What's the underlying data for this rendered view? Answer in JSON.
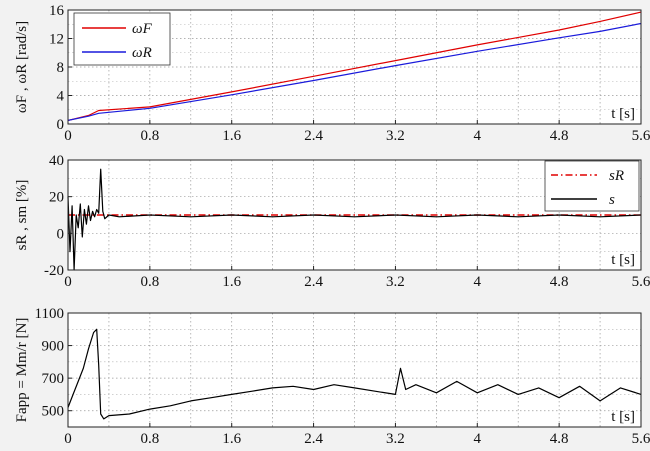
{
  "chart_data": [
    {
      "type": "line",
      "title": "",
      "xlabel": "t [s]",
      "ylabel": "ωF , ωR [rad/s]",
      "xlim": [
        0,
        5.6
      ],
      "ylim": [
        0,
        16
      ],
      "xticks": [
        "0",
        "0.8",
        "1.6",
        "2.4",
        "3.2",
        "4",
        "4.8",
        "5.6"
      ],
      "yticks": [
        "0",
        "4",
        "8",
        "12",
        "16"
      ],
      "grid": true,
      "legend_position": "top-left",
      "series": [
        {
          "name": "ωF",
          "color": "#e00000",
          "x": [
            0,
            0.2,
            0.3,
            0.8,
            1.6,
            2.4,
            3.2,
            4.0,
            4.8,
            5.2,
            5.6
          ],
          "y": [
            0.5,
            1.2,
            1.9,
            2.4,
            4.5,
            6.7,
            8.9,
            11.1,
            13.2,
            14.4,
            15.7
          ]
        },
        {
          "name": "ωR",
          "color": "#1a1adb",
          "x": [
            0,
            0.2,
            0.3,
            0.8,
            1.6,
            2.4,
            3.2,
            4.0,
            4.8,
            5.2,
            5.6
          ],
          "y": [
            0.5,
            1.1,
            1.5,
            2.2,
            4.1,
            6.1,
            8.2,
            10.2,
            12.1,
            13.0,
            14.1
          ]
        }
      ]
    },
    {
      "type": "line",
      "title": "",
      "xlabel": "t [s]",
      "ylabel": "sR , sm [%]",
      "xlim": [
        0,
        5.6
      ],
      "ylim": [
        -20,
        40
      ],
      "xticks": [
        "0",
        "0.8",
        "1.6",
        "2.4",
        "3.2",
        "4",
        "4.8",
        "5.6"
      ],
      "yticks": [
        "-20",
        "0",
        "20",
        "40"
      ],
      "grid": true,
      "legend_position": "top-right",
      "series": [
        {
          "name": "sR",
          "color": "#e00000",
          "dash": "dashdot",
          "x": [
            0,
            5.6
          ],
          "y": [
            10,
            10
          ]
        },
        {
          "name": "s",
          "color": "#000000",
          "x": [
            0,
            0.02,
            0.04,
            0.06,
            0.08,
            0.1,
            0.12,
            0.14,
            0.16,
            0.18,
            0.2,
            0.22,
            0.24,
            0.26,
            0.28,
            0.3,
            0.32,
            0.34,
            0.36,
            0.4,
            0.5,
            0.8,
            1.2,
            1.6,
            2.0,
            2.4,
            2.8,
            3.2,
            3.6,
            4.0,
            4.4,
            4.8,
            5.2,
            5.6
          ],
          "y": [
            20,
            -10,
            15,
            -20,
            10,
            3,
            16,
            -2,
            13,
            5,
            15,
            7,
            12,
            9,
            13,
            11,
            35,
            12,
            8,
            10,
            9,
            10,
            9,
            10,
            9,
            10,
            9,
            10,
            9,
            10,
            9,
            10,
            9,
            10
          ]
        }
      ]
    },
    {
      "type": "line",
      "title": "",
      "xlabel": "t [s]",
      "ylabel": "Fapp = Mm/r [N]",
      "xlim": [
        0,
        5.6
      ],
      "ylim": [
        400,
        1100
      ],
      "xticks": [
        "0",
        "0.8",
        "1.6",
        "2.4",
        "3.2",
        "4",
        "4.8",
        "5.6"
      ],
      "yticks": [
        "500",
        "700",
        "900",
        "1100"
      ],
      "grid": true,
      "series": [
        {
          "name": "",
          "color": "#000000",
          "x": [
            0,
            0.05,
            0.1,
            0.15,
            0.2,
            0.25,
            0.28,
            0.3,
            0.32,
            0.35,
            0.4,
            0.6,
            0.8,
            1.0,
            1.2,
            1.4,
            1.6,
            1.8,
            2.0,
            2.2,
            2.4,
            2.6,
            2.8,
            3.0,
            3.2,
            3.25,
            3.3,
            3.4,
            3.6,
            3.8,
            4.0,
            4.2,
            4.4,
            4.6,
            4.8,
            5.0,
            5.2,
            5.4,
            5.6
          ],
          "y": [
            520,
            600,
            680,
            760,
            880,
            980,
            1000,
            780,
            480,
            450,
            470,
            480,
            510,
            530,
            560,
            580,
            600,
            620,
            640,
            650,
            630,
            660,
            640,
            620,
            600,
            760,
            630,
            660,
            610,
            680,
            610,
            660,
            600,
            640,
            580,
            650,
            560,
            640,
            600
          ]
        }
      ]
    }
  ]
}
